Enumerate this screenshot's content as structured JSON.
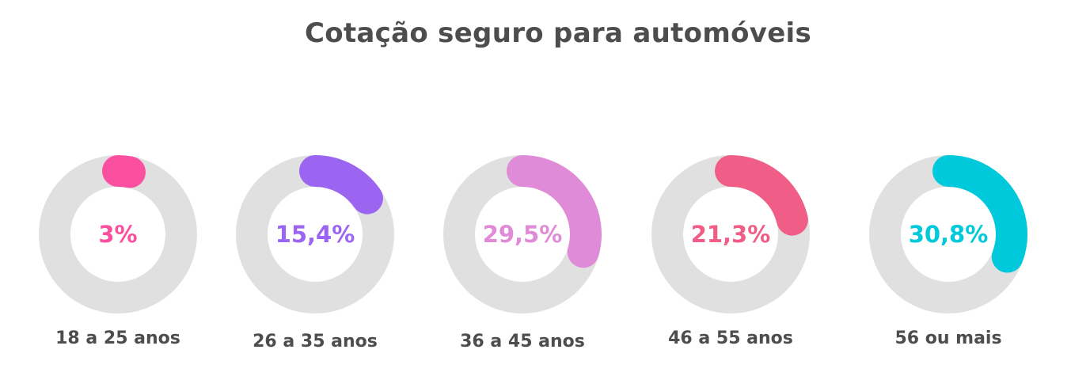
{
  "chart_data": {
    "type": "donut",
    "title": "Cotação seguro para automóveis",
    "categories": [
      "18 a 25 anos",
      "26 a 35 anos",
      "36 a 45 anos",
      "46 a 55 anos",
      "56 ou mais"
    ],
    "values": [
      3,
      15.4,
      29.5,
      21.3,
      30.8
    ],
    "value_labels": [
      "3%",
      "15,4%",
      "29,5%",
      "21,3%",
      "30,8%"
    ],
    "unit": "%",
    "colors": [
      "#fb4fa0",
      "#9b65f2",
      "#e08bd8",
      "#f05d86",
      "#00c9db"
    ],
    "track_color": "#e0e0e0"
  }
}
